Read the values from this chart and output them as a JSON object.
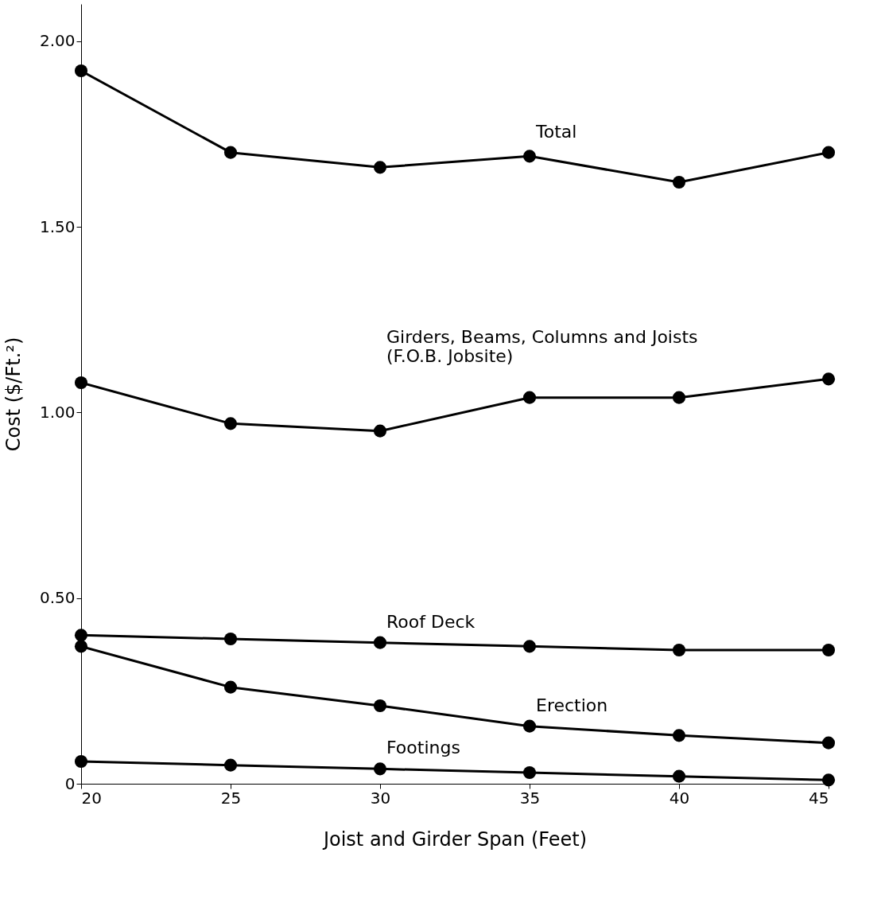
{
  "chart_data": {
    "type": "line",
    "xlabel": "Joist and Girder Span (Feet)",
    "ylabel": "Cost ($/Ft.²)",
    "x": [
      20,
      25,
      30,
      35,
      40,
      45
    ],
    "series": [
      {
        "name": "Total",
        "color": "#000000",
        "values": [
          1.92,
          1.7,
          1.66,
          1.69,
          1.62,
          1.7
        ]
      },
      {
        "name": "Girders, Beams, Columns and Joists\n(F.O.B. Jobsite)",
        "color": "#000000",
        "values": [
          1.08,
          0.97,
          0.95,
          1.04,
          1.04,
          1.09
        ]
      },
      {
        "name": "Roof Deck",
        "color": "#000000",
        "values": [
          0.4,
          0.39,
          0.38,
          0.37,
          0.36,
          0.36
        ]
      },
      {
        "name": "Erection",
        "color": "#000000",
        "values": [
          0.37,
          0.26,
          0.21,
          0.155,
          0.13,
          0.11
        ]
      },
      {
        "name": "Footings",
        "color": "#000000",
        "values": [
          0.06,
          0.05,
          0.04,
          0.03,
          0.02,
          0.01
        ]
      }
    ],
    "xlim": [
      20,
      45
    ],
    "xticks": [
      20,
      25,
      30,
      35,
      40,
      45
    ],
    "ylim": [
      0,
      2.1
    ],
    "yticks": [
      {
        "value": 0,
        "label": "0"
      },
      {
        "value": 0.5,
        "label": "0.50"
      },
      {
        "value": 1,
        "label": "1.00"
      },
      {
        "value": 1.5,
        "label": "1.50"
      },
      {
        "value": 2,
        "label": "2.00"
      }
    ],
    "grid": false,
    "marker": "circle",
    "line_style": "solid"
  }
}
